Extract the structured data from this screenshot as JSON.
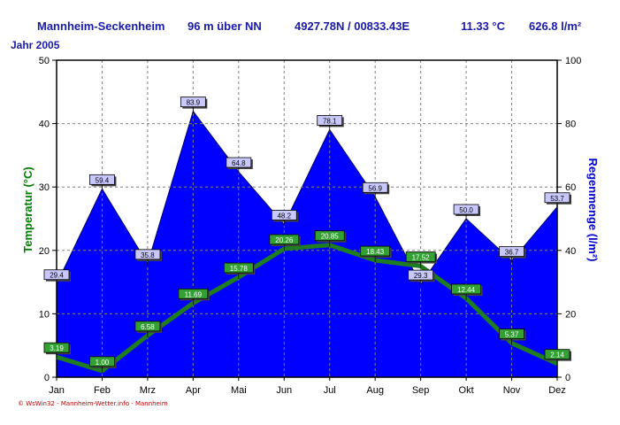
{
  "header": {
    "station": "Mannheim-Seckenheim",
    "altitude": "96 m über NN",
    "coords": "4927.78N / 00833.43E",
    "mean_temp": "11.33 °C",
    "total_precip": "626.8 l/m²"
  },
  "year_label": "Jahr  2005",
  "footer": "© WsWin32 - Mannheim-Wetter.info - Mannheim",
  "colors": {
    "precip_fill": "#0000ff",
    "temp_line": "#1e7d1e",
    "temp_axis_title": "#008000",
    "precip_axis_title": "#0000cc",
    "header_text": "#1a1aa8"
  },
  "chart_data": {
    "type": "area",
    "categories": [
      "Jan",
      "Feb",
      "Mrz",
      "Apr",
      "Mai",
      "Jun",
      "Jul",
      "Aug",
      "Sep",
      "Okt",
      "Nov",
      "Dez"
    ],
    "series": [
      {
        "axis": "left",
        "type": "line",
        "values": [
          3.19,
          1.0,
          6.58,
          11.69,
          15.78,
          20.26,
          20.85,
          18.43,
          17.52,
          12.44,
          5.37,
          2.14
        ],
        "labels": [
          "3.19",
          "1.00",
          "6.58",
          "11.69",
          "15.78",
          "20.26",
          "20.85",
          "18.43",
          "17.52",
          "12.44",
          "5.37",
          "2.14"
        ]
      },
      {
        "axis": "right",
        "type": "area",
        "values": [
          29.4,
          59.4,
          35.8,
          83.9,
          64.8,
          48.2,
          78.1,
          56.9,
          29.3,
          50.0,
          36.7,
          53.7
        ],
        "labels": [
          "29.4",
          "59.4",
          "35.8",
          "83.9",
          "64.8",
          "48.2",
          "78.1",
          "56.9",
          "29.3",
          "50.0",
          "36.7",
          "53.7"
        ]
      }
    ],
    "ylabel": "Temperatur  (°C)",
    "y2label": "Regenmenge  (l/m²)",
    "ylim": [
      0,
      50
    ],
    "y2lim": [
      0,
      100
    ],
    "yticks": [
      "0",
      "10",
      "20",
      "30",
      "40",
      "50"
    ],
    "y2ticks": [
      "0",
      "20",
      "40",
      "60",
      "80",
      "100"
    ],
    "grid": true,
    "legend": "none"
  }
}
